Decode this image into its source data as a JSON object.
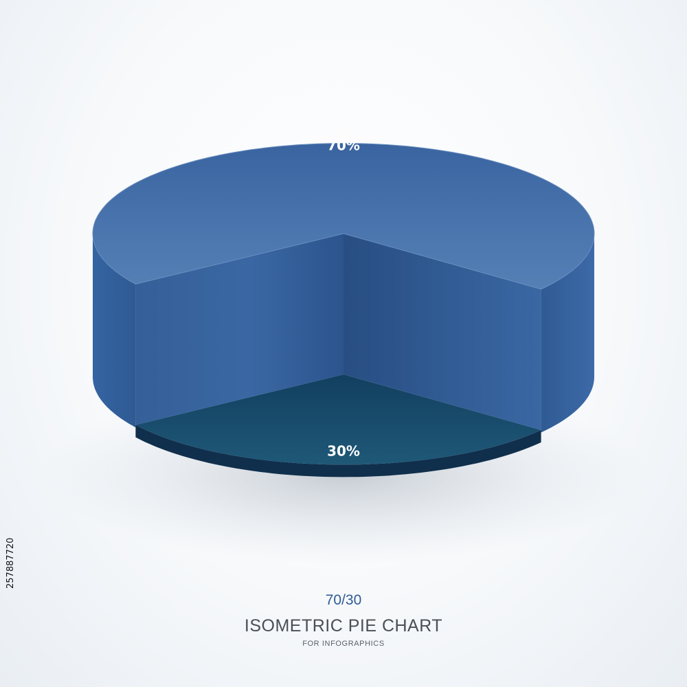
{
  "chart_data": {
    "type": "pie",
    "style": "isometric 3d",
    "categories": [
      "70%",
      "30%"
    ],
    "values": [
      70,
      30
    ],
    "colors": [
      "#3f6aa6",
      "#174d6b"
    ],
    "labels": [
      "70%",
      "30%"
    ],
    "ratio_caption": "70/30",
    "title": "ISOMETRIC PIE CHART",
    "subtitle": "FOR INFOGRAPHICS"
  },
  "stock_id": "257887720",
  "colors": {
    "top_face": "#4b76ad",
    "side_face": "#345f98",
    "base_slice": "#174d6b",
    "title_text": "#4a4f56",
    "ratio_text": "#2f5b94"
  }
}
